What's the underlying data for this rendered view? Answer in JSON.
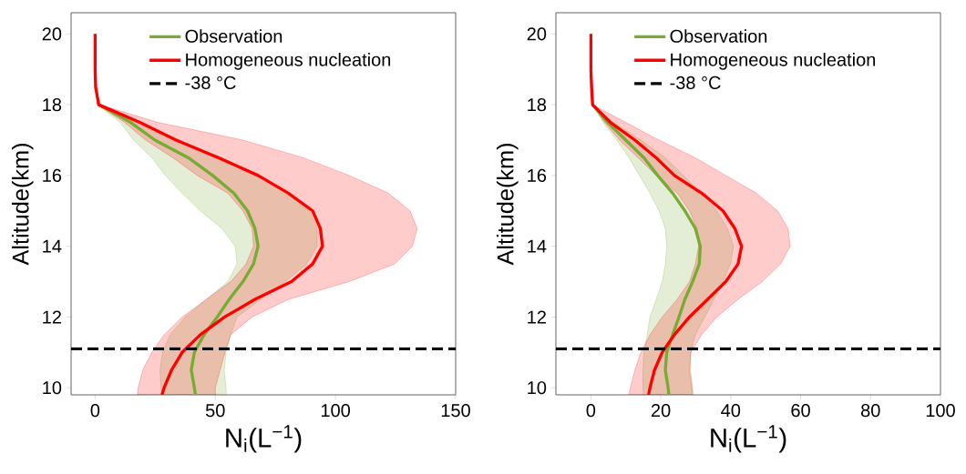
{
  "chart_data": [
    {
      "type": "line",
      "orientation": "horizontal",
      "xlabel": "N$_{i}$(L$^{−1}$)",
      "ylabel": "Altitude(km)",
      "legend": "top",
      "x": [
        20,
        19,
        18.5,
        18,
        17.5,
        17,
        16.5,
        16,
        15.5,
        15,
        14.5,
        14,
        13.5,
        13,
        12.5,
        12,
        11.5,
        11,
        10.5,
        10,
        9.8
      ],
      "series": [
        {
          "name": "Observation",
          "color": "#77ab33",
          "values": [
            null,
            null,
            null,
            1.5,
            14.8,
            24.9,
            38.8,
            48.9,
            57.7,
            63.4,
            66.5,
            67.8,
            65.9,
            61.5,
            55.8,
            50.8,
            45.3,
            41.3,
            40,
            41.3,
            41.7
          ],
          "lower": [
            0,
            0,
            0.2,
            1,
            10.4,
            16,
            23.6,
            29.3,
            36.2,
            43.8,
            52.7,
            58.3,
            59,
            55.2,
            46.3,
            37.5,
            31.2,
            28,
            27,
            27.4,
            27.7
          ],
          "upper": [
            0,
            0,
            0.2,
            2,
            18.6,
            35,
            52.7,
            67.8,
            80.4,
            89.3,
            92.4,
            92.4,
            88,
            79.2,
            69,
            59,
            56.4,
            54.5,
            53.7,
            54.5,
            54.5
          ]
        },
        {
          "name": "Homogeneous nucleation",
          "color": "#ff0000",
          "values": [
            0,
            0,
            0.2,
            1.5,
            18.6,
            33.7,
            51.4,
            67.8,
            80.4,
            90.5,
            93.7,
            94.6,
            90.5,
            81.7,
            66.5,
            53.9,
            43.8,
            36.2,
            31.8,
            28.7,
            27.8
          ],
          "lower": [
            0,
            0,
            0.2,
            1,
            12.2,
            21,
            32.4,
            42.5,
            55.2,
            61.5,
            65.3,
            65.9,
            62.8,
            56.4,
            46.3,
            36.2,
            28.7,
            23.6,
            19.8,
            17.9,
            17.6
          ],
          "upper": [
            0,
            0,
            0.2,
            2,
            26.1,
            61.5,
            86.7,
            105.7,
            122,
            131,
            134,
            132,
            124.6,
            105.7,
            80.4,
            65.3,
            56.4,
            54,
            52,
            50,
            50
          ]
        }
      ],
      "xlim": [
        -10,
        150
      ],
      "xticks": [
        0,
        50,
        100,
        150
      ],
      "ylim": [
        9.8,
        20.6
      ],
      "yticks": [
        10,
        12,
        14,
        16,
        18,
        20
      ],
      "ref_lines": [
        {
          "axis": "y",
          "value": 11.1,
          "label": "-38 °C",
          "color": "#000000",
          "line_style": "dashed"
        }
      ]
    },
    {
      "type": "line",
      "orientation": "horizontal",
      "xlabel": "N$_{i}$(L$^{−1}$)",
      "ylabel": "Altitude(km)",
      "legend": "top",
      "x": [
        20,
        19,
        18.5,
        18,
        17.5,
        17,
        16.5,
        16,
        15.5,
        15,
        14.5,
        14,
        13.5,
        13,
        12.5,
        12,
        11.5,
        11,
        10.5,
        10,
        9.8
      ],
      "series": [
        {
          "name": "Observation",
          "color": "#77ab33",
          "values": [
            null,
            null,
            null,
            0.5,
            4.8,
            10,
            15.2,
            19.1,
            23.4,
            26.9,
            29.9,
            31.3,
            31,
            29.1,
            26.9,
            25.2,
            23.4,
            21.7,
            21.3,
            22.1,
            22.3
          ],
          "lower": [
            0,
            0,
            0.2,
            0.5,
            3.5,
            7.4,
            10.9,
            13.9,
            16.9,
            19.5,
            21.3,
            21.7,
            21.3,
            20.4,
            18.7,
            16.9,
            16.1,
            15.2,
            14.9,
            14.9,
            15
          ],
          "upper": [
            0,
            0,
            0.2,
            0.5,
            6.5,
            14.3,
            21.3,
            26.5,
            31.7,
            36,
            39.1,
            40.8,
            39.9,
            37.8,
            35.2,
            32.6,
            29.9,
            28.6,
            28.5,
            29.1,
            29.3
          ]
        },
        {
          "name": "Homogeneous nucleation",
          "color": "#ff0000",
          "values": [
            0,
            0,
            0.2,
            0.5,
            5.6,
            12.6,
            18.7,
            23.9,
            31.7,
            37.8,
            41.2,
            43.1,
            42.1,
            38.6,
            33.4,
            28.2,
            23.9,
            20.4,
            18.2,
            16.9,
            16.5
          ],
          "lower": [
            0,
            0,
            0.2,
            0.5,
            3.9,
            8.2,
            13.5,
            18.7,
            24.7,
            28.2,
            30.4,
            30.8,
            29.9,
            28.2,
            24.7,
            20.4,
            16.9,
            14.3,
            12.6,
            11.3,
            10.9
          ],
          "upper": [
            0,
            0,
            0.2,
            0.5,
            10,
            19.5,
            29.9,
            38.6,
            47.3,
            53.4,
            56.4,
            57,
            54.3,
            49,
            42.1,
            36,
            31.7,
            28.6,
            28.2,
            28.9,
            29.1
          ]
        }
      ],
      "xlim": [
        -10,
        100
      ],
      "xticks": [
        0,
        20,
        40,
        60,
        80,
        100
      ],
      "ylim": [
        9.8,
        20.6
      ],
      "yticks": [
        10,
        12,
        14,
        16,
        18,
        20
      ],
      "ref_lines": [
        {
          "axis": "y",
          "value": 11.1,
          "label": "-38 °C",
          "color": "#000000",
          "line_style": "dashed"
        }
      ]
    }
  ]
}
